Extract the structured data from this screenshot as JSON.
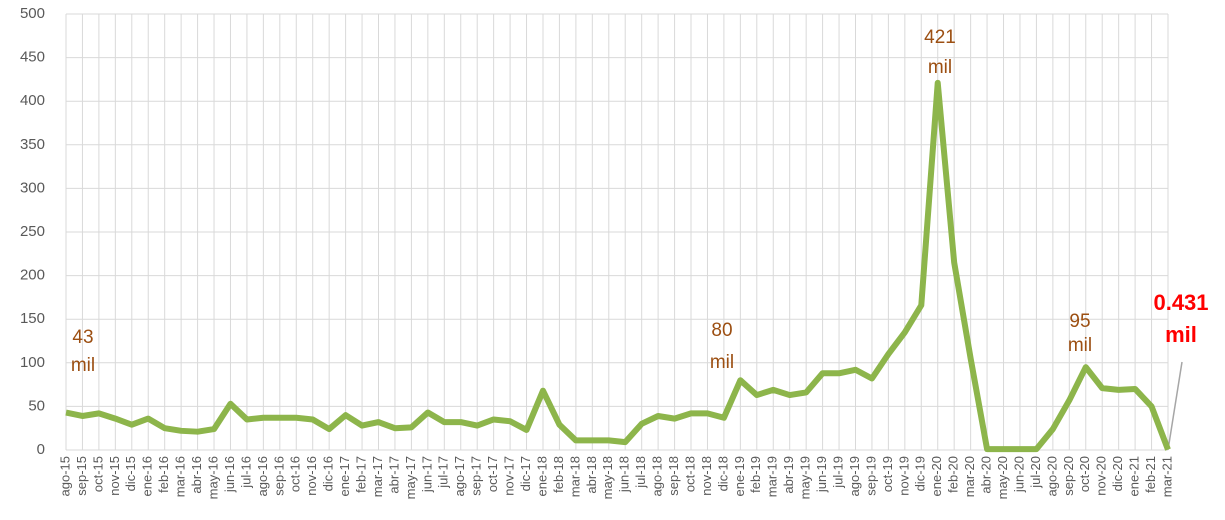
{
  "chart_data": {
    "type": "line",
    "categories": [
      "ago-15",
      "sep-15",
      "oct-15",
      "nov-15",
      "dic-15",
      "ene-16",
      "feb-16",
      "mar-16",
      "abr-16",
      "may-16",
      "jun-16",
      "jul-16",
      "ago-16",
      "sep-16",
      "oct-16",
      "nov-16",
      "dic-16",
      "ene-17",
      "feb-17",
      "mar-17",
      "abr-17",
      "may-17",
      "jun-17",
      "jul-17",
      "ago-17",
      "sep-17",
      "oct-17",
      "nov-17",
      "dic-17",
      "ene-18",
      "feb-18",
      "mar-18",
      "abr-18",
      "may-18",
      "jun-18",
      "jul-18",
      "ago-18",
      "sep-18",
      "oct-18",
      "nov-18",
      "dic-18",
      "ene-19",
      "feb-19",
      "mar-19",
      "abr-19",
      "may-19",
      "jun-19",
      "jul-19",
      "ago-19",
      "sep-19",
      "oct-19",
      "nov-19",
      "dic-19",
      "ene-20",
      "feb-20",
      "mar-20",
      "abr-20",
      "may-20",
      "jun-20",
      "jul-20",
      "ago-20",
      "sep-20",
      "oct-20",
      "nov-20",
      "dic-20",
      "ene-21",
      "feb-21",
      "mar-21"
    ],
    "values": [
      43,
      39,
      42,
      36,
      29,
      36,
      25,
      22,
      21,
      24,
      53,
      35,
      37,
      37,
      37,
      35,
      24,
      40,
      28,
      32,
      25,
      26,
      43,
      32,
      32,
      28,
      35,
      33,
      23,
      68,
      29,
      11,
      11,
      11,
      9,
      30,
      39,
      36,
      42,
      42,
      37,
      80,
      63,
      69,
      63,
      66,
      88,
      88,
      92,
      82,
      110,
      135,
      166,
      421,
      215,
      105,
      1,
      1,
      1,
      1,
      24,
      57,
      95,
      71,
      69,
      70,
      50,
      0.431
    ],
    "color": "#8db54b",
    "ylim": [
      0,
      500
    ],
    "yticks": [
      0,
      50,
      100,
      150,
      200,
      250,
      300,
      350,
      400,
      450,
      500
    ],
    "grid": true,
    "annotations": [
      {
        "lines": [
          "43",
          "mil"
        ]
      },
      {
        "lines": [
          "80",
          "mil"
        ]
      },
      {
        "lines": [
          "421",
          "mil"
        ]
      },
      {
        "lines": [
          "95",
          "mil"
        ]
      },
      {
        "lines": [
          "0.431",
          "mil"
        ]
      }
    ]
  }
}
